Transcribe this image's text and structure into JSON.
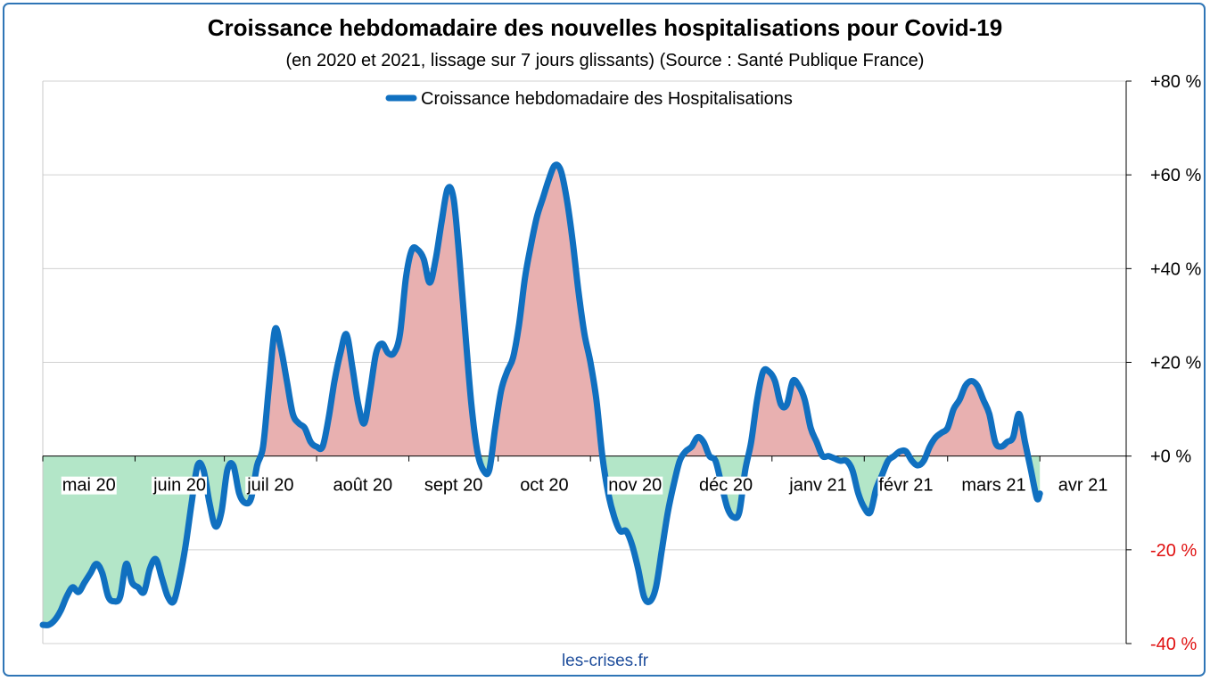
{
  "header": {
    "title": "Croissance hebdomadaire des nouvelles hospitalisations pour Covid-19",
    "subtitle": "(en 2020 et 2021, lissage sur 7 jours glissants) (Source : Santé Publique France)"
  },
  "footer": {
    "source": "les-crises.fr"
  },
  "colors": {
    "line": "#1070c0",
    "positive_fill": "#e8b0b0",
    "negative_fill": "#b3e6c8",
    "negative_tick": "#e01010",
    "gridline": "#d0d0d0",
    "frame": "#2e75b6"
  },
  "chart_data": {
    "type": "area",
    "x_unit": "date",
    "y_unit": "%",
    "legend": {
      "label": "Croissance hebdomadaire des Hospitalisations",
      "position": "top"
    },
    "grid": true,
    "ylim": [
      -40,
      80
    ],
    "y_ticks": [
      {
        "value": 80,
        "label": "+80 %"
      },
      {
        "value": 60,
        "label": "+60 %"
      },
      {
        "value": 40,
        "label": "+40 %"
      },
      {
        "value": 20,
        "label": "+20 %"
      },
      {
        "value": 0,
        "label": "+0 %"
      },
      {
        "value": -20,
        "label": "-20 %"
      },
      {
        "value": -40,
        "label": "-40 %"
      }
    ],
    "xlim": [
      "2020-05-01",
      "2021-04-30"
    ],
    "x_ticks": [
      {
        "date": "2020-05-01",
        "label": "mai 20"
      },
      {
        "date": "2020-06-01",
        "label": "juin 20"
      },
      {
        "date": "2020-07-01",
        "label": "juil 20"
      },
      {
        "date": "2020-08-01",
        "label": "août 20"
      },
      {
        "date": "2020-09-01",
        "label": "sept 20"
      },
      {
        "date": "2020-10-01",
        "label": "oct 20"
      },
      {
        "date": "2020-11-01",
        "label": "nov 20"
      },
      {
        "date": "2020-12-01",
        "label": "déc 20"
      },
      {
        "date": "2021-01-01",
        "label": "janv 21"
      },
      {
        "date": "2021-02-01",
        "label": "févr 21"
      },
      {
        "date": "2021-03-01",
        "label": "mars 21"
      },
      {
        "date": "2021-04-01",
        "label": "avr 21"
      }
    ],
    "series": [
      {
        "name": "Croissance hebdomadaire des Hospitalisations",
        "points": [
          [
            "2020-05-01",
            -36
          ],
          [
            "2020-05-03",
            -36
          ],
          [
            "2020-05-05",
            -35
          ],
          [
            "2020-05-07",
            -33
          ],
          [
            "2020-05-09",
            -30
          ],
          [
            "2020-05-11",
            -28
          ],
          [
            "2020-05-13",
            -29
          ],
          [
            "2020-05-15",
            -27
          ],
          [
            "2020-05-17",
            -25
          ],
          [
            "2020-05-19",
            -23
          ],
          [
            "2020-05-21",
            -25
          ],
          [
            "2020-05-23",
            -30
          ],
          [
            "2020-05-25",
            -31
          ],
          [
            "2020-05-27",
            -30
          ],
          [
            "2020-05-29",
            -23
          ],
          [
            "2020-05-31",
            -27
          ],
          [
            "2020-06-02",
            -28
          ],
          [
            "2020-06-04",
            -29
          ],
          [
            "2020-06-06",
            -24
          ],
          [
            "2020-06-08",
            -22
          ],
          [
            "2020-06-10",
            -26
          ],
          [
            "2020-06-12",
            -30
          ],
          [
            "2020-06-14",
            -31
          ],
          [
            "2020-06-16",
            -26
          ],
          [
            "2020-06-18",
            -19
          ],
          [
            "2020-06-20",
            -10
          ],
          [
            "2020-06-22",
            -2
          ],
          [
            "2020-06-24",
            -3
          ],
          [
            "2020-06-26",
            -10
          ],
          [
            "2020-06-28",
            -15
          ],
          [
            "2020-06-30",
            -12
          ],
          [
            "2020-07-02",
            -3
          ],
          [
            "2020-07-04",
            -2
          ],
          [
            "2020-07-06",
            -8
          ],
          [
            "2020-07-08",
            -10
          ],
          [
            "2020-07-10",
            -9
          ],
          [
            "2020-07-12",
            -2
          ],
          [
            "2020-07-14",
            2
          ],
          [
            "2020-07-16",
            15
          ],
          [
            "2020-07-18",
            27
          ],
          [
            "2020-07-20",
            23
          ],
          [
            "2020-07-22",
            16
          ],
          [
            "2020-07-24",
            9
          ],
          [
            "2020-07-26",
            7
          ],
          [
            "2020-07-28",
            6
          ],
          [
            "2020-07-30",
            3
          ],
          [
            "2020-08-01",
            2
          ],
          [
            "2020-08-03",
            2
          ],
          [
            "2020-08-05",
            8
          ],
          [
            "2020-08-07",
            16
          ],
          [
            "2020-08-09",
            22
          ],
          [
            "2020-08-11",
            26
          ],
          [
            "2020-08-13",
            19
          ],
          [
            "2020-08-15",
            11
          ],
          [
            "2020-08-17",
            7
          ],
          [
            "2020-08-19",
            14
          ],
          [
            "2020-08-21",
            22
          ],
          [
            "2020-08-23",
            24
          ],
          [
            "2020-08-25",
            22
          ],
          [
            "2020-08-27",
            22
          ],
          [
            "2020-08-29",
            26
          ],
          [
            "2020-08-31",
            38
          ],
          [
            "2020-09-02",
            44
          ],
          [
            "2020-09-04",
            44
          ],
          [
            "2020-09-06",
            42
          ],
          [
            "2020-09-08",
            37
          ],
          [
            "2020-09-10",
            42
          ],
          [
            "2020-09-12",
            50
          ],
          [
            "2020-09-14",
            57
          ],
          [
            "2020-09-16",
            55
          ],
          [
            "2020-09-18",
            42
          ],
          [
            "2020-09-20",
            26
          ],
          [
            "2020-09-22",
            11
          ],
          [
            "2020-09-24",
            1
          ],
          [
            "2020-09-26",
            -3
          ],
          [
            "2020-09-28",
            -3
          ],
          [
            "2020-09-30",
            6
          ],
          [
            "2020-10-02",
            14
          ],
          [
            "2020-10-04",
            18
          ],
          [
            "2020-10-06",
            21
          ],
          [
            "2020-10-08",
            28
          ],
          [
            "2020-10-10",
            38
          ],
          [
            "2020-10-12",
            45
          ],
          [
            "2020-10-14",
            51
          ],
          [
            "2020-10-16",
            55
          ],
          [
            "2020-10-18",
            59
          ],
          [
            "2020-10-20",
            62
          ],
          [
            "2020-10-22",
            61
          ],
          [
            "2020-10-24",
            55
          ],
          [
            "2020-10-26",
            46
          ],
          [
            "2020-10-28",
            35
          ],
          [
            "2020-10-30",
            26
          ],
          [
            "2020-11-01",
            20
          ],
          [
            "2020-11-03",
            12
          ],
          [
            "2020-11-05",
            0
          ],
          [
            "2020-11-07",
            -8
          ],
          [
            "2020-11-09",
            -13
          ],
          [
            "2020-11-11",
            -16
          ],
          [
            "2020-11-13",
            -16
          ],
          [
            "2020-11-15",
            -19
          ],
          [
            "2020-11-17",
            -24
          ],
          [
            "2020-11-19",
            -30
          ],
          [
            "2020-11-21",
            -31
          ],
          [
            "2020-11-23",
            -28
          ],
          [
            "2020-11-25",
            -20
          ],
          [
            "2020-11-27",
            -12
          ],
          [
            "2020-11-29",
            -6
          ],
          [
            "2020-12-01",
            -1
          ],
          [
            "2020-12-03",
            1
          ],
          [
            "2020-12-05",
            2
          ],
          [
            "2020-12-07",
            4
          ],
          [
            "2020-12-09",
            3
          ],
          [
            "2020-12-11",
            0
          ],
          [
            "2020-12-13",
            -1
          ],
          [
            "2020-12-15",
            -6
          ],
          [
            "2020-12-17",
            -11
          ],
          [
            "2020-12-19",
            -13
          ],
          [
            "2020-12-21",
            -12
          ],
          [
            "2020-12-23",
            -3
          ],
          [
            "2020-12-25",
            3
          ],
          [
            "2020-12-27",
            12
          ],
          [
            "2020-12-29",
            18
          ],
          [
            "2020-12-31",
            18
          ],
          [
            "2021-01-02",
            16
          ],
          [
            "2021-01-04",
            11
          ],
          [
            "2021-01-06",
            11
          ],
          [
            "2021-01-08",
            16
          ],
          [
            "2021-01-10",
            15
          ],
          [
            "2021-01-12",
            12
          ],
          [
            "2021-01-14",
            6
          ],
          [
            "2021-01-16",
            3
          ],
          [
            "2021-01-18",
            0
          ],
          [
            "2021-01-20",
            0
          ],
          [
            "2021-01-22",
            -0.5
          ],
          [
            "2021-01-24",
            -1
          ],
          [
            "2021-01-26",
            -1
          ],
          [
            "2021-01-28",
            -3
          ],
          [
            "2021-01-30",
            -8
          ],
          [
            "2021-02-01",
            -11
          ],
          [
            "2021-02-03",
            -12
          ],
          [
            "2021-02-05",
            -7
          ],
          [
            "2021-02-07",
            -4
          ],
          [
            "2021-02-09",
            -1
          ],
          [
            "2021-02-11",
            0
          ],
          [
            "2021-02-13",
            1
          ],
          [
            "2021-02-15",
            1
          ],
          [
            "2021-02-17",
            -1
          ],
          [
            "2021-02-19",
            -2
          ],
          [
            "2021-02-21",
            -1
          ],
          [
            "2021-02-23",
            2
          ],
          [
            "2021-02-25",
            4
          ],
          [
            "2021-02-27",
            5
          ],
          [
            "2021-03-01",
            6
          ],
          [
            "2021-03-03",
            10
          ],
          [
            "2021-03-05",
            12
          ],
          [
            "2021-03-07",
            15
          ],
          [
            "2021-03-09",
            16
          ],
          [
            "2021-03-11",
            15
          ],
          [
            "2021-03-13",
            12
          ],
          [
            "2021-03-15",
            9
          ],
          [
            "2021-03-17",
            3
          ],
          [
            "2021-03-19",
            2
          ],
          [
            "2021-03-21",
            3
          ],
          [
            "2021-03-23",
            4
          ],
          [
            "2021-03-25",
            9
          ],
          [
            "2021-03-27",
            3
          ],
          [
            "2021-03-29",
            -3
          ],
          [
            "2021-03-31",
            -9
          ],
          [
            "2021-04-01",
            -8
          ]
        ]
      }
    ]
  }
}
